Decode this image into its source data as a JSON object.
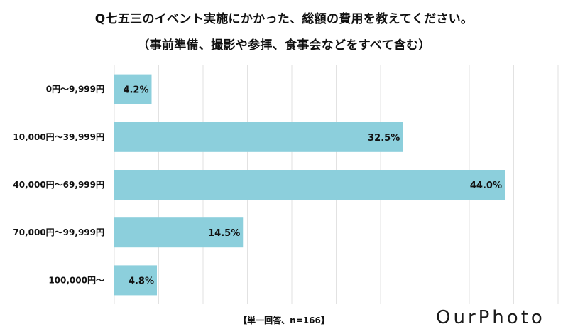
{
  "header": {
    "title_line1": "Q七五三のイベント実施にかかった、総額の費用を教えてください。",
    "title_line2": "（事前準備、撮影や参拝、食事会などをすべて含む）"
  },
  "footer": {
    "note": "【単一回答、n=166】",
    "brand": "OurPhoto"
  },
  "colors": {
    "bar": "#8ccfdc",
    "grid": "#e2e2e2"
  },
  "chart_data": {
    "type": "bar",
    "orientation": "horizontal",
    "title": "Q七五三のイベント実施にかかった、総額の費用を教えてください。（事前準備、撮影や参拝、食事会などをすべて含む）",
    "categories": [
      "0円～9,999円",
      "10,000円～39,999円",
      "40,000円～69,999円",
      "70,000円～99,999円",
      "100,000円～"
    ],
    "values": [
      4.2,
      32.5,
      44.0,
      14.5,
      4.8
    ],
    "value_labels": [
      "4.2%",
      "32.5%",
      "44.0%",
      "14.5%",
      "4.8%"
    ],
    "unit": "%",
    "xlim": [
      0,
      50
    ],
    "grid": true,
    "legend": "none"
  }
}
